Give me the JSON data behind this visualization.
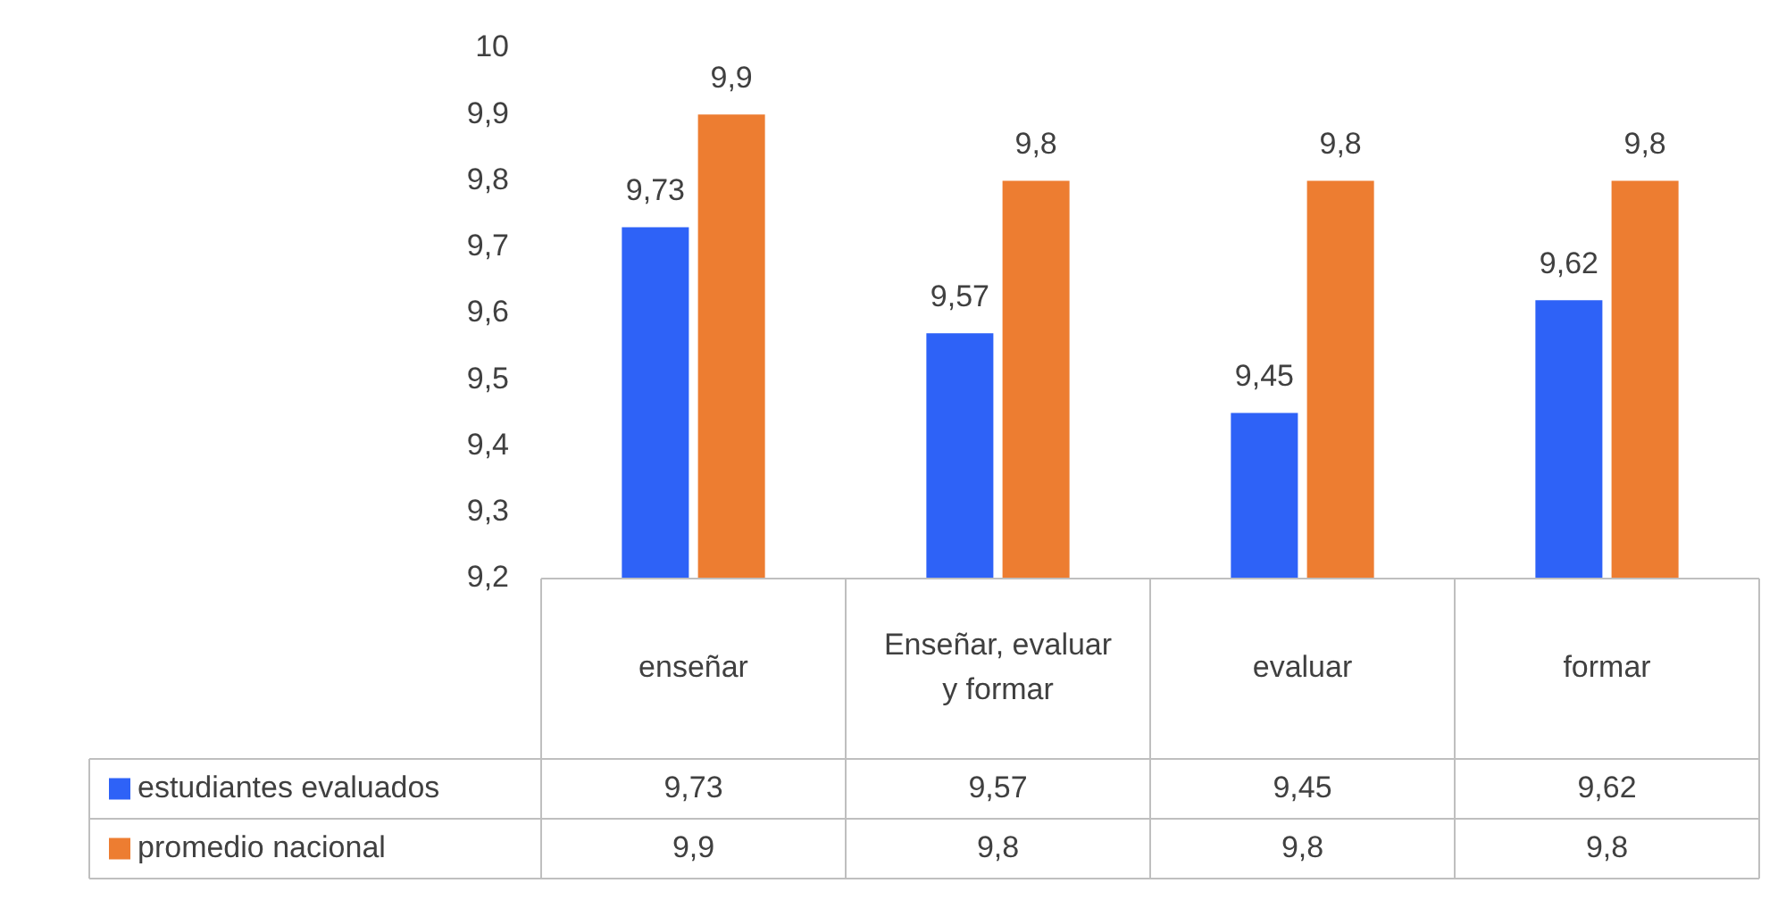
{
  "chart_data": {
    "type": "bar",
    "categories": [
      "enseñar",
      "Enseñar, evaluar y formar",
      "evaluar",
      "formar"
    ],
    "series": [
      {
        "name": "estudiantes evaluados",
        "color": "#2e62f7",
        "values": [
          9.73,
          9.57,
          9.45,
          9.62
        ],
        "value_labels": [
          "9,73",
          "9,57",
          "9,45",
          "9,62"
        ]
      },
      {
        "name": "promedio nacional",
        "color": "#ed7d31",
        "values": [
          9.9,
          9.8,
          9.8,
          9.8
        ],
        "value_labels": [
          "9,9",
          "9,8",
          "9,8",
          "9,8"
        ]
      }
    ],
    "ylim": [
      9.2,
      10
    ],
    "yticks": [
      {
        "value": 9.2,
        "label": "9,2"
      },
      {
        "value": 9.3,
        "label": "9,3"
      },
      {
        "value": 9.4,
        "label": "9,4"
      },
      {
        "value": 9.5,
        "label": "9,5"
      },
      {
        "value": 9.6,
        "label": "9,6"
      },
      {
        "value": 9.7,
        "label": "9,7"
      },
      {
        "value": 9.8,
        "label": "9,8"
      },
      {
        "value": 9.9,
        "label": "9,9"
      },
      {
        "value": 10,
        "label": "10"
      }
    ],
    "grid": false,
    "legend": "bottom"
  }
}
